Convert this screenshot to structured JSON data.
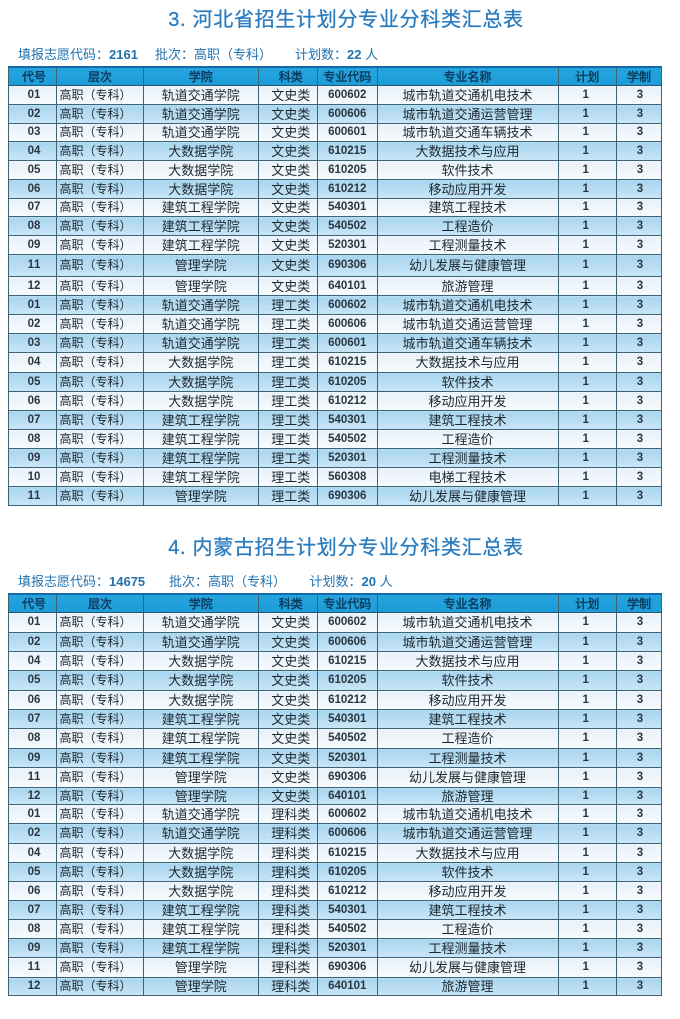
{
  "colors": {
    "title_blue": "#2b7cbf",
    "info_blue": "#2171ae",
    "header_bg_top": "#26a4de",
    "header_bg_bottom": "#1c9dd9",
    "header_text": "#0e3c5f",
    "grid_border": "#3e6375",
    "row_odd_top": "#e8f1f9",
    "row_odd_bottom": "#f7fbfd",
    "row_even_top": "#a8d5ef",
    "row_even_bottom": "#c9e6f7",
    "cell_text": "#1d272e",
    "page_bg": "#ffffff"
  },
  "columns": [
    "代号",
    "层次",
    "学院",
    "科类",
    "专业代码",
    "专业名称",
    "计划",
    "学制"
  ],
  "tables": [
    {
      "title": "3. 河北省招生计划分专业分科类汇总表",
      "info": [
        "填报志愿代码：2161",
        "批次：高职（专科）",
        "计划数：22 人"
      ],
      "rows": [
        [
          "01",
          "高职（专科）",
          "轨道交通学院",
          "文史类",
          "600602",
          "城市轨道交通机电技术",
          "1",
          "3"
        ],
        [
          "02",
          "高职（专科）",
          "轨道交通学院",
          "文史类",
          "600606",
          "城市轨道交通运营管理",
          "1",
          "3"
        ],
        [
          "03",
          "高职（专科）",
          "轨道交通学院",
          "文史类",
          "600601",
          "城市轨道交通车辆技术",
          "1",
          "3"
        ],
        [
          "04",
          "高职（专科）",
          "大数据学院",
          "文史类",
          "610215",
          "大数据技术与应用",
          "1",
          "3"
        ],
        [
          "05",
          "高职（专科）",
          "大数据学院",
          "文史类",
          "610205",
          "软件技术",
          "1",
          "3"
        ],
        [
          "06",
          "高职（专科）",
          "大数据学院",
          "文史类",
          "610212",
          "移动应用开发",
          "1",
          "3"
        ],
        [
          "07",
          "高职（专科）",
          "建筑工程学院",
          "文史类",
          "540301",
          "建筑工程技术",
          "1",
          "3"
        ],
        [
          "08",
          "高职（专科）",
          "建筑工程学院",
          "文史类",
          "540502",
          "工程造价",
          "1",
          "3"
        ],
        [
          "09",
          "高职（专科）",
          "建筑工程学院",
          "文史类",
          "520301",
          "工程测量技术",
          "1",
          "3"
        ],
        [
          "11",
          "高职（专科）",
          "管理学院",
          "文史类",
          "690306",
          "幼儿发展与健康管理",
          "1",
          "3"
        ],
        [
          "12",
          "高职（专科）",
          "管理学院",
          "文史类",
          "640101",
          "旅游管理",
          "1",
          "3"
        ],
        [
          "01",
          "高职（专科）",
          "轨道交通学院",
          "理工类",
          "600602",
          "城市轨道交通机电技术",
          "1",
          "3"
        ],
        [
          "02",
          "高职（专科）",
          "轨道交通学院",
          "理工类",
          "600606",
          "城市轨道交通运营管理",
          "1",
          "3"
        ],
        [
          "03",
          "高职（专科）",
          "轨道交通学院",
          "理工类",
          "600601",
          "城市轨道交通车辆技术",
          "1",
          "3"
        ],
        [
          "04",
          "高职（专科）",
          "大数据学院",
          "理工类",
          "610215",
          "大数据技术与应用",
          "1",
          "3"
        ],
        [
          "05",
          "高职（专科）",
          "大数据学院",
          "理工类",
          "610205",
          "软件技术",
          "1",
          "3"
        ],
        [
          "06",
          "高职（专科）",
          "大数据学院",
          "理工类",
          "610212",
          "移动应用开发",
          "1",
          "3"
        ],
        [
          "07",
          "高职（专科）",
          "建筑工程学院",
          "理工类",
          "540301",
          "建筑工程技术",
          "1",
          "3"
        ],
        [
          "08",
          "高职（专科）",
          "建筑工程学院",
          "理工类",
          "540502",
          "工程造价",
          "1",
          "3"
        ],
        [
          "09",
          "高职（专科）",
          "建筑工程学院",
          "理工类",
          "520301",
          "工程测量技术",
          "1",
          "3"
        ],
        [
          "10",
          "高职（专科）",
          "建筑工程学院",
          "理工类",
          "560308",
          "电梯工程技术",
          "1",
          "3"
        ],
        [
          "11",
          "高职（专科）",
          "管理学院",
          "理工类",
          "690306",
          "幼儿发展与健康管理",
          "1",
          "3"
        ]
      ]
    },
    {
      "title": "4. 内蒙古招生计划分专业分科类汇总表",
      "info": [
        "填报志愿代码：14675",
        "批次：高职（专科）",
        "计划数：20 人"
      ],
      "rows": [
        [
          "01",
          "高职（专科）",
          "轨道交通学院",
          "文史类",
          "600602",
          "城市轨道交通机电技术",
          "1",
          "3"
        ],
        [
          "02",
          "高职（专科）",
          "轨道交通学院",
          "文史类",
          "600606",
          "城市轨道交通运营管理",
          "1",
          "3"
        ],
        [
          "04",
          "高职（专科）",
          "大数据学院",
          "文史类",
          "610215",
          "大数据技术与应用",
          "1",
          "3"
        ],
        [
          "05",
          "高职（专科）",
          "大数据学院",
          "文史类",
          "610205",
          "软件技术",
          "1",
          "3"
        ],
        [
          "06",
          "高职（专科）",
          "大数据学院",
          "文史类",
          "610212",
          "移动应用开发",
          "1",
          "3"
        ],
        [
          "07",
          "高职（专科）",
          "建筑工程学院",
          "文史类",
          "540301",
          "建筑工程技术",
          "1",
          "3"
        ],
        [
          "08",
          "高职（专科）",
          "建筑工程学院",
          "文史类",
          "540502",
          "工程造价",
          "1",
          "3"
        ],
        [
          "09",
          "高职（专科）",
          "建筑工程学院",
          "文史类",
          "520301",
          "工程测量技术",
          "1",
          "3"
        ],
        [
          "11",
          "高职（专科）",
          "管理学院",
          "文史类",
          "690306",
          "幼儿发展与健康管理",
          "1",
          "3"
        ],
        [
          "12",
          "高职（专科）",
          "管理学院",
          "文史类",
          "640101",
          "旅游管理",
          "1",
          "3"
        ],
        [
          "01",
          "高职（专科）",
          "轨道交通学院",
          "理科类",
          "600602",
          "城市轨道交通机电技术",
          "1",
          "3"
        ],
        [
          "02",
          "高职（专科）",
          "轨道交通学院",
          "理科类",
          "600606",
          "城市轨道交通运营管理",
          "1",
          "3"
        ],
        [
          "04",
          "高职（专科）",
          "大数据学院",
          "理科类",
          "610215",
          "大数据技术与应用",
          "1",
          "3"
        ],
        [
          "05",
          "高职（专科）",
          "大数据学院",
          "理科类",
          "610205",
          "软件技术",
          "1",
          "3"
        ],
        [
          "06",
          "高职（专科）",
          "大数据学院",
          "理科类",
          "610212",
          "移动应用开发",
          "1",
          "3"
        ],
        [
          "07",
          "高职（专科）",
          "建筑工程学院",
          "理科类",
          "540301",
          "建筑工程技术",
          "1",
          "3"
        ],
        [
          "08",
          "高职（专科）",
          "建筑工程学院",
          "理科类",
          "540502",
          "工程造价",
          "1",
          "3"
        ],
        [
          "09",
          "高职（专科）",
          "建筑工程学院",
          "理科类",
          "520301",
          "工程测量技术",
          "1",
          "3"
        ],
        [
          "11",
          "高职（专科）",
          "管理学院",
          "理科类",
          "690306",
          "幼儿发展与健康管理",
          "1",
          "3"
        ],
        [
          "12",
          "高职（专科）",
          "管理学院",
          "理科类",
          "640101",
          "旅游管理",
          "1",
          "3"
        ]
      ]
    }
  ]
}
